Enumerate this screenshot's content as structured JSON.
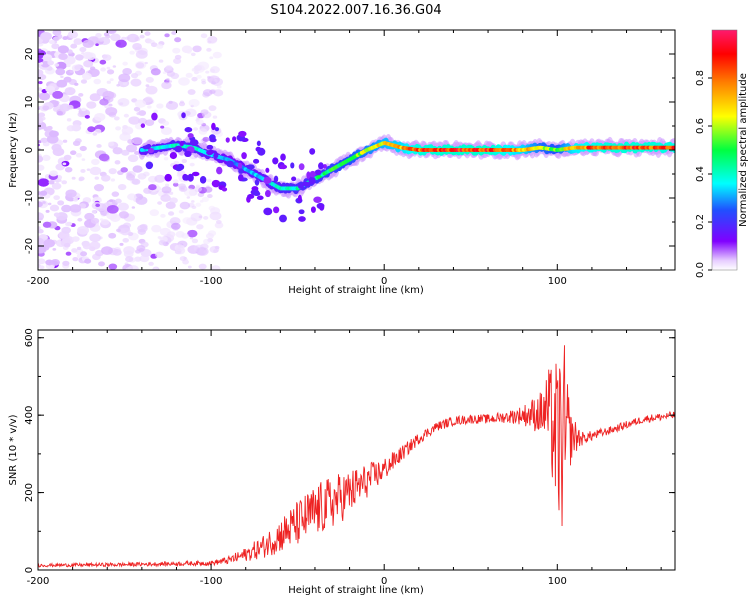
{
  "figure_title": "S104.2022.007.16.36.G04",
  "colors": {
    "snr_line": "#ee2222",
    "spectrum_base": "#7b14f5",
    "axis": "#000000"
  },
  "colormap": [
    "#ffffff",
    "#e6ccff",
    "#8000ff",
    "#2050ff",
    "#00ffff",
    "#00ff40",
    "#ffff00",
    "#ff8000",
    "#ff0000",
    "#ff1a6e"
  ],
  "chart_data": [
    {
      "type": "heatmap",
      "title": "",
      "xlabel": "Height of straight line (km)",
      "ylabel": "Frequency (Hz)",
      "xlim": [
        -200,
        168
      ],
      "ylim": [
        -25,
        25
      ],
      "xticks": [
        -200,
        -100,
        0,
        100
      ],
      "yticks": [
        -20,
        -10,
        0,
        10,
        20
      ],
      "colorbar": {
        "label": "Normalized spectral amplitude",
        "range": [
          0,
          1
        ],
        "ticks": [
          "0.0",
          "0.2",
          "0.4",
          "0.6",
          "0.8"
        ]
      },
      "ridge": {
        "x": [
          -140,
          -120,
          -110,
          -100,
          -90,
          -80,
          -70,
          -60,
          -50,
          -40,
          -30,
          -20,
          -10,
          0,
          10,
          20,
          40,
          60,
          80,
          90,
          100,
          110,
          130,
          150,
          168
        ],
        "y": [
          0,
          1,
          0.5,
          -1,
          -2,
          -4,
          -6,
          -8,
          -8,
          -6,
          -4,
          -2,
          0,
          1.5,
          0.5,
          0,
          0,
          0,
          0,
          0.5,
          0,
          0.5,
          0.5,
          0.5,
          0.5
        ],
        "amplitude": [
          0.35,
          0.4,
          0.4,
          0.35,
          0.3,
          0.32,
          0.35,
          0.4,
          0.42,
          0.45,
          0.5,
          0.55,
          0.62,
          0.7,
          0.75,
          0.85,
          0.88,
          0.88,
          0.75,
          0.6,
          0.55,
          0.78,
          0.86,
          0.86,
          0.84
        ]
      },
      "noise_region_x": [
        -200,
        -95
      ]
    },
    {
      "type": "line",
      "title": "",
      "xlabel": "Height of straight line (km)",
      "ylabel": "SNR (10 * v/v)",
      "xlim": [
        -200,
        168
      ],
      "ylim": [
        0,
        620
      ],
      "xticks": [
        -200,
        -100,
        0,
        100
      ],
      "yticks": [
        0,
        200,
        400,
        600
      ],
      "series": [
        {
          "x": [
            -200,
            -150,
            -100,
            -90,
            -80,
            -70,
            -60,
            -50,
            -40,
            -30,
            -20,
            -10,
            0,
            10,
            20,
            30,
            40,
            50,
            60,
            70,
            80,
            90,
            95,
            100,
            104,
            108,
            115,
            130,
            150,
            168
          ],
          "values": [
            12,
            14,
            18,
            25,
            40,
            60,
            90,
            120,
            150,
            175,
            200,
            230,
            260,
            300,
            340,
            370,
            385,
            390,
            390,
            395,
            400,
            405,
            410,
            330,
            330,
            345,
            340,
            360,
            390,
            400
          ],
          "noise_amplitude": [
            4,
            5,
            6,
            10,
            18,
            30,
            45,
            60,
            70,
            70,
            60,
            45,
            30,
            20,
            15,
            12,
            12,
            12,
            12,
            15,
            25,
            55,
            110,
            220,
            260,
            60,
            15,
            10,
            10,
            10
          ]
        }
      ]
    }
  ]
}
